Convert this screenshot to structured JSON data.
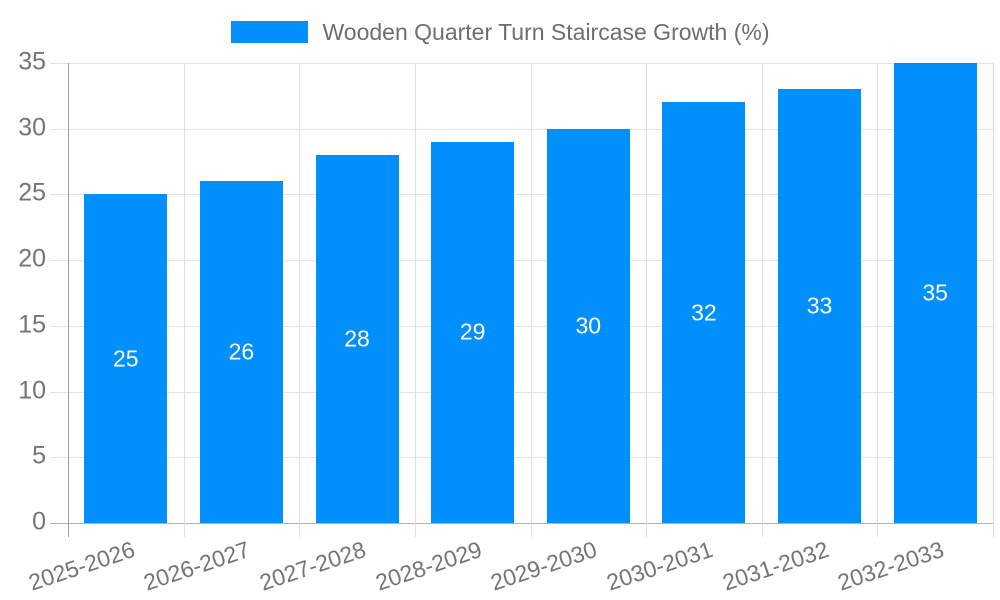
{
  "chart_data": {
    "type": "bar",
    "title": "",
    "xlabel": "",
    "ylabel": "",
    "categories": [
      "2025-2026",
      "2026-2027",
      "2027-2028",
      "2028-2029",
      "2029-2030",
      "2030-2031",
      "2031-2032",
      "2032-2033"
    ],
    "series": [
      {
        "name": "Wooden Quarter Turn Staircase Growth (%)",
        "values": [
          25,
          26,
          28,
          29,
          30,
          32,
          33,
          35
        ]
      }
    ],
    "ylim": [
      0,
      35
    ],
    "yticks": [
      0,
      5,
      10,
      15,
      20,
      25,
      30,
      35
    ],
    "grid": true,
    "legend_position": "top",
    "colors": {
      "bar": "#008FFB",
      "bar_value_label": "#ffffff",
      "axis_tick_label": "#757575",
      "legend_text": "#6e6e6e",
      "gridline": "#e3e3e3",
      "vertical_gridline": "#e0e0e0",
      "baseline": "#b3b3b3",
      "y_axis_line": "#9e9e9e",
      "background": "#ffffff"
    }
  }
}
